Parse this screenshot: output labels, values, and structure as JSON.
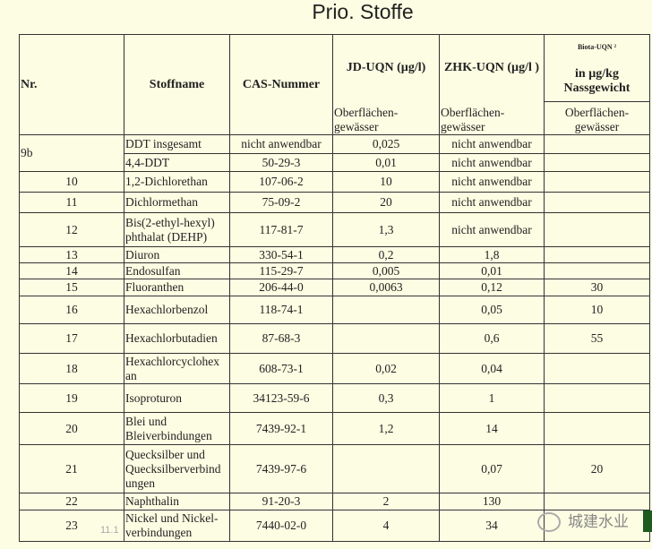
{
  "title": "Prio. Stoffe",
  "header": {
    "nr": "Nr.",
    "name": "Stoffname",
    "cas": "CAS-Nummer",
    "jd": "JD-UQN (µg/l)",
    "zhk": "ZHK-UQN (µg/l )",
    "biota_top": "Biota-UQN ²",
    "biota": "in µg/kg Nassgewicht",
    "sub": "Oberflächen-gewässer"
  },
  "rows": [
    {
      "nr": "9b",
      "name": "DDT insgesamt",
      "cas": "nicht anwendbar",
      "jd": "0,025",
      "zhk": "nicht anwendbar",
      "biota": ""
    },
    {
      "nr": "",
      "name": "4,4-DDT",
      "cas": "50-29-3",
      "jd": "0,01",
      "zhk": "nicht anwendbar",
      "biota": ""
    },
    {
      "nr": "10",
      "name": "1,2-Dichlorethan",
      "cas": "107-06-2",
      "jd": "10",
      "zhk": "nicht anwendbar",
      "biota": ""
    },
    {
      "nr": "11",
      "name": "Dichlormethan",
      "cas": "75-09-2",
      "jd": "20",
      "zhk": "nicht anwendbar",
      "biota": ""
    },
    {
      "nr": "12",
      "name": "Bis(2-ethyl-hexyl) phthalat (DEHP)",
      "cas": "117-81-7",
      "jd": "1,3",
      "zhk": "nicht anwendbar",
      "biota": ""
    },
    {
      "nr": "13",
      "name": "Diuron",
      "cas": "330-54-1",
      "jd": "0,2",
      "zhk": "1,8",
      "biota": ""
    },
    {
      "nr": "14",
      "name": "Endosulfan",
      "cas": "115-29-7",
      "jd": "0,005",
      "zhk": "0,01",
      "biota": ""
    },
    {
      "nr": "15",
      "name": "Fluoranthen",
      "cas": "206-44-0",
      "jd": "0,0063",
      "zhk": "0,12",
      "biota": "30"
    },
    {
      "nr": "16",
      "name": "Hexachlorbenzol",
      "cas": "118-74-1",
      "jd": "",
      "zhk": "0,05",
      "biota": "10"
    },
    {
      "nr": "17",
      "name": "Hexachlorbutadien",
      "cas": "87-68-3",
      "jd": "",
      "zhk": "0,6",
      "biota": "55"
    },
    {
      "nr": "18",
      "name": "Hexachlorcyclohex an",
      "cas": "608-73-1",
      "jd": "0,02",
      "zhk": "0,04",
      "biota": ""
    },
    {
      "nr": "19",
      "name": "Isoproturon",
      "cas": "34123-59-6",
      "jd": "0,3",
      "zhk": "1",
      "biota": ""
    },
    {
      "nr": "20",
      "name": "Blei und Bleiverbindungen",
      "cas": "7439-92-1",
      "jd": "1,2",
      "zhk": "14",
      "biota": ""
    },
    {
      "nr": "21",
      "name": "Quecksilber und Quecksilberverbind ungen",
      "cas": "7439-97-6",
      "jd": "",
      "zhk": "0,07",
      "biota": "20"
    },
    {
      "nr": "22",
      "name": "Naphthalin",
      "cas": "91-20-3",
      "jd": "2",
      "zhk": "130",
      "biota": ""
    },
    {
      "nr": "23",
      "name": "Nickel und Nickel-verbindungen",
      "cas": "7440-02-0",
      "jd": "4",
      "zhk": "34",
      "biota": ""
    }
  ],
  "date": "11.1",
  "watermark": "城建水业"
}
